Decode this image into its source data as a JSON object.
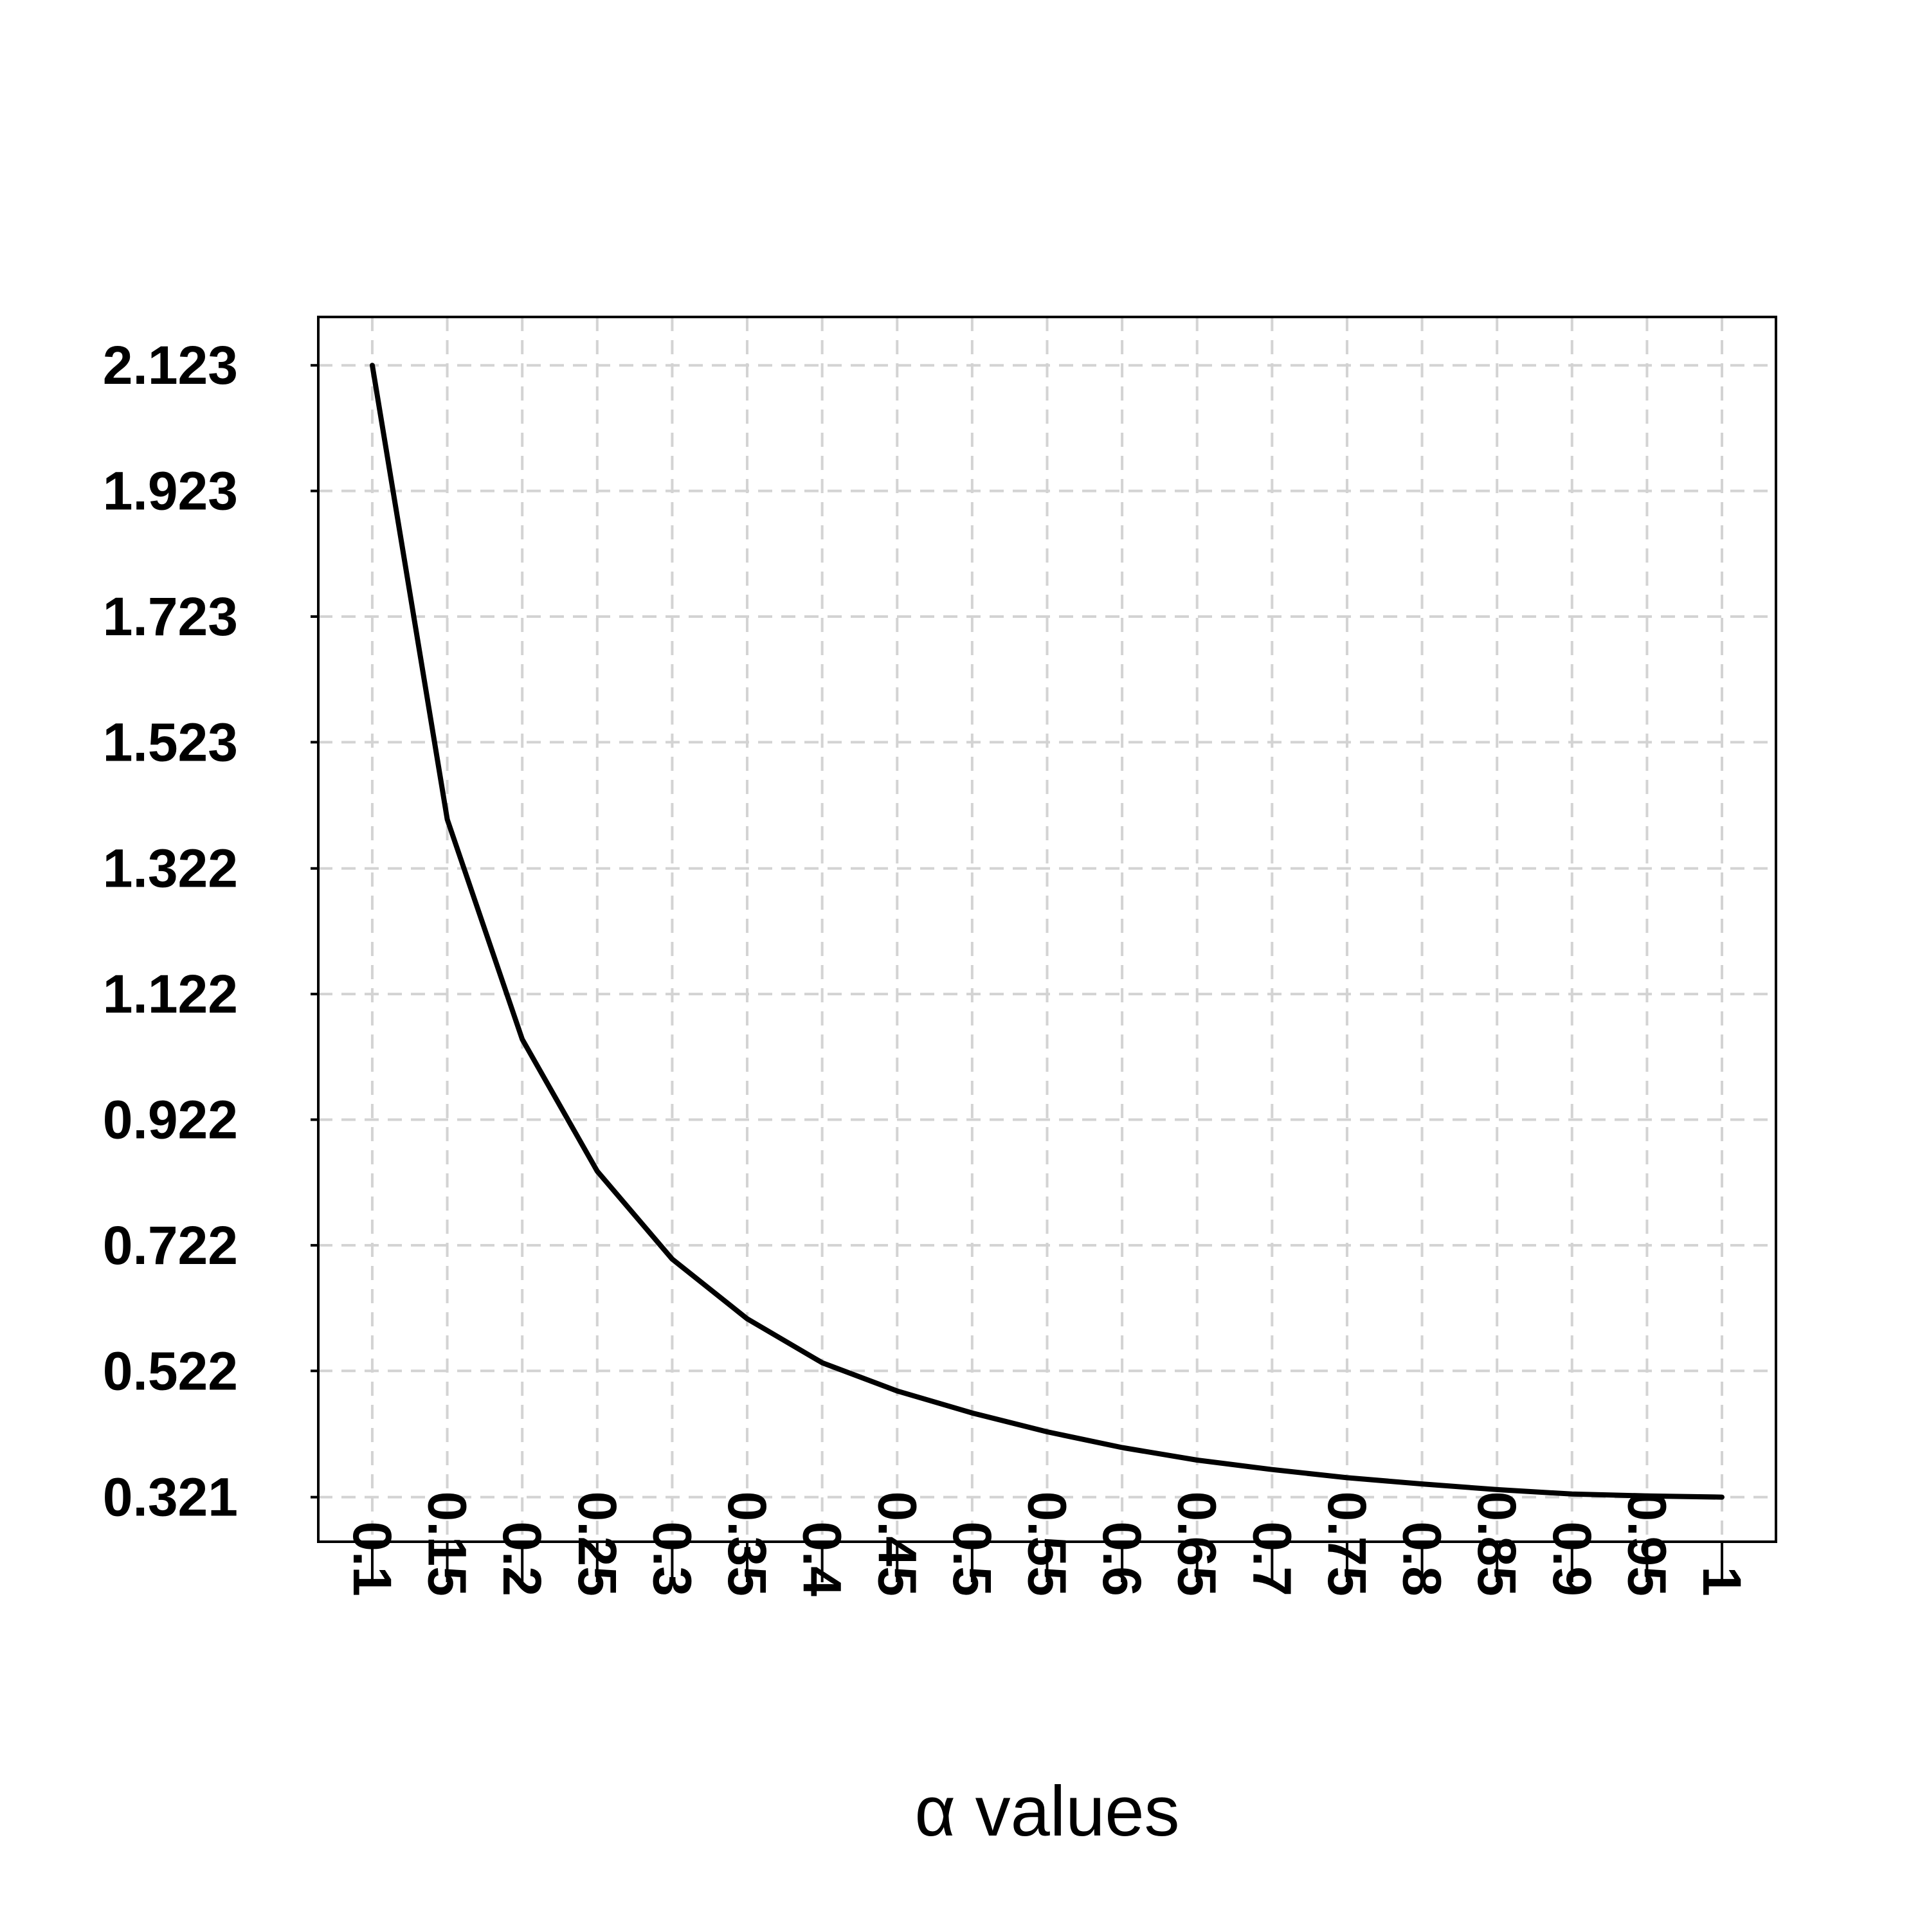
{
  "chart_data": {
    "type": "line",
    "title": "",
    "xlabel": "α values",
    "ylabel": "",
    "x": [
      0.1,
      0.15,
      0.2,
      0.25,
      0.3,
      0.35,
      0.4,
      0.45,
      0.5,
      0.55,
      0.6,
      0.65,
      0.7,
      0.75,
      0.8,
      0.85,
      0.9,
      0.95,
      1
    ],
    "x_tick_labels": [
      "0.1",
      "0.15",
      "0.2",
      "0.25",
      "0.3",
      "0.35",
      "0.4",
      "0.45",
      "0.5",
      "0.55",
      "0.6",
      "0.65",
      "0.7",
      "0.75",
      "0.8",
      "0.85",
      "0.9",
      "0.95",
      "1"
    ],
    "y_ticks": [
      0.321,
      0.522,
      0.722,
      0.922,
      1.122,
      1.322,
      1.523,
      1.723,
      1.923,
      2.123
    ],
    "y_tick_labels": [
      "0.321",
      "0.522",
      "0.722",
      "0.922",
      "1.122",
      "1.322",
      "1.523",
      "1.723",
      "1.923",
      "2.123"
    ],
    "series": [
      {
        "values": [
          2.123,
          1.4,
          1.05,
          0.84,
          0.7,
          0.605,
          0.535,
          0.49,
          0.455,
          0.425,
          0.4,
          0.38,
          0.365,
          0.352,
          0.342,
          0.333,
          0.326,
          0.323,
          0.321
        ]
      }
    ],
    "xlim": [
      0.064,
      1.036
    ],
    "ylim": [
      0.25,
      2.2
    ],
    "grid": true,
    "line_color": "#000000",
    "grid_color": "#d3d3d3"
  }
}
